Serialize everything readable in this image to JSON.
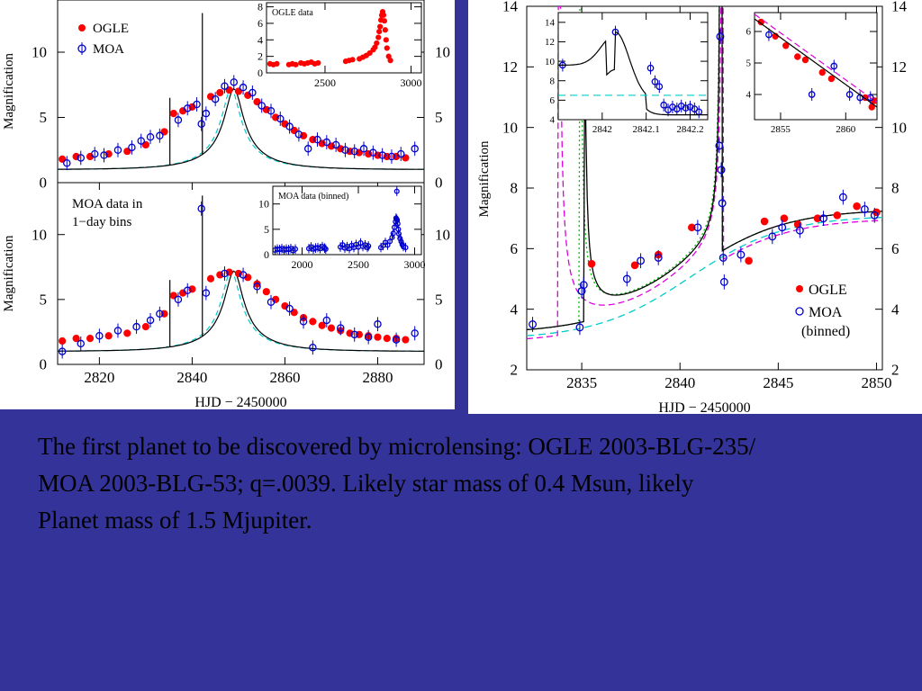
{
  "slide": {
    "background": "#333399",
    "caption_lines": [
      "The first planet to be discovered by microlensing: OGLE 2003-BLG-235/",
      "MOA 2003-BLG-53;  q=.0039.  Likely star mass of 0.4 Msun, likely",
      "Planet mass of 1.5 Mjupiter."
    ]
  },
  "colors": {
    "ogle": "#ff0000",
    "moa": "#0000cc",
    "model": "#000000",
    "alt_cyan": "#00cccc",
    "alt_magenta": "#dd00dd",
    "alt_green": "#00bb00"
  },
  "chart_data": [
    {
      "type": "scatter",
      "id": "left-top",
      "ylabel": "Magnification",
      "xlim": [
        2811,
        2890
      ],
      "ylim": [
        0,
        14
      ],
      "yticks": [
        0,
        5,
        10
      ],
      "legend": [
        {
          "name": "OGLE",
          "marker": "filled-circle"
        },
        {
          "name": "MOA",
          "marker": "open-circle"
        }
      ],
      "legend_position": "top-left",
      "model": {
        "t0": 2849,
        "u0": 0.14,
        "tE": 14,
        "spike_x": 2842.2,
        "spike_peak": 13,
        "pre_spike_x": 2835.2,
        "pre_spike_peak": 6.5
      },
      "series": [
        {
          "name": "OGLE",
          "x": [
            2812,
            2815,
            2818,
            2822,
            2826,
            2830,
            2834,
            2836,
            2838,
            2840,
            2844,
            2846,
            2848,
            2850,
            2852,
            2854,
            2856,
            2858,
            2860,
            2862,
            2864,
            2866,
            2868,
            2870,
            2872,
            2874,
            2876,
            2878,
            2880,
            2882,
            2884,
            2886
          ],
          "y": [
            1.8,
            2.0,
            2.0,
            2.2,
            2.4,
            2.9,
            3.9,
            5.3,
            5.5,
            5.8,
            6.6,
            6.9,
            7.1,
            7.0,
            6.7,
            6.2,
            5.6,
            5.0,
            4.5,
            4.0,
            3.6,
            3.3,
            3.0,
            2.8,
            2.6,
            2.4,
            2.3,
            2.2,
            2.1,
            2.0,
            2.0,
            1.9
          ]
        },
        {
          "name": "MOA",
          "x": [
            2813,
            2816,
            2819,
            2821,
            2824,
            2827,
            2829,
            2831,
            2833,
            2837,
            2839,
            2841,
            2842,
            2843,
            2845,
            2847,
            2849,
            2851,
            2853,
            2855,
            2857,
            2859,
            2861,
            2863,
            2865,
            2867,
            2869,
            2871,
            2873,
            2875,
            2877,
            2879,
            2881,
            2883,
            2885,
            2888
          ],
          "y": [
            1.5,
            1.9,
            2.2,
            2.1,
            2.5,
            2.7,
            3.2,
            3.5,
            3.6,
            4.8,
            5.7,
            6.0,
            4.5,
            5.3,
            6.4,
            7.4,
            7.7,
            7.3,
            6.9,
            5.9,
            5.5,
            4.9,
            4.3,
            3.7,
            2.6,
            3.3,
            3.1,
            2.9,
            2.5,
            2.4,
            2.6,
            2.3,
            2.1,
            2.0,
            2.2,
            2.6
          ]
        }
      ],
      "xticks": []
    },
    {
      "type": "scatter",
      "id": "left-top-inset",
      "title": "OGLE data",
      "xlim": [
        2160,
        3060
      ],
      "ylim": [
        0,
        8.5
      ],
      "yticks": [
        0,
        2,
        4,
        6,
        8
      ],
      "xticks": [
        2500,
        3000
      ],
      "series": [
        {
          "name": "OGLE",
          "x": [
            2180,
            2200,
            2220,
            2290,
            2310,
            2330,
            2360,
            2380,
            2400,
            2420,
            2440,
            2460,
            2620,
            2640,
            2660,
            2700,
            2720,
            2740,
            2760,
            2780,
            2790,
            2800,
            2810,
            2815,
            2820,
            2825,
            2830,
            2835,
            2840,
            2845,
            2850,
            2855,
            2860,
            2870,
            2880
          ],
          "y": [
            1.1,
            1.0,
            1.1,
            1.0,
            1.1,
            1.0,
            1.2,
            1.1,
            1.2,
            1.3,
            1.1,
            1.2,
            1.4,
            1.5,
            1.6,
            1.7,
            1.9,
            2.1,
            2.4,
            2.8,
            3.1,
            3.6,
            4.3,
            5.0,
            5.6,
            6.4,
            7.0,
            7.4,
            7.0,
            6.3,
            5.2,
            4.0,
            3.0,
            2.0,
            1.5
          ]
        }
      ]
    },
    {
      "type": "scatter",
      "id": "left-bottom",
      "ylabel": "Magnification",
      "xlabel": "HJD − 2450000",
      "annotation": [
        "MOA data in",
        "1−day bins"
      ],
      "xlim": [
        2811,
        2890
      ],
      "ylim": [
        0,
        14
      ],
      "yticks": [
        0,
        5,
        10
      ],
      "xticks": [
        2820,
        2840,
        2860,
        2880
      ],
      "model": {
        "t0": 2849,
        "u0": 0.14,
        "tE": 14,
        "spike_x": 2842.2,
        "spike_peak": 13,
        "pre_spike_x": 2835.2,
        "pre_spike_peak": 6.5
      },
      "series": [
        {
          "name": "OGLE",
          "x": [
            2812,
            2815,
            2818,
            2822,
            2826,
            2830,
            2834,
            2836,
            2838,
            2840,
            2844,
            2846,
            2848,
            2850,
            2852,
            2854,
            2856,
            2858,
            2860,
            2862,
            2864,
            2866,
            2868,
            2870,
            2872,
            2874,
            2876,
            2878,
            2880,
            2882,
            2884,
            2886
          ],
          "y": [
            1.8,
            2.0,
            2.0,
            2.2,
            2.4,
            2.9,
            3.9,
            5.3,
            5.5,
            5.8,
            6.6,
            6.9,
            7.1,
            7.0,
            6.7,
            6.2,
            5.6,
            5.0,
            4.5,
            4.0,
            3.6,
            3.3,
            3.0,
            2.8,
            2.6,
            2.4,
            2.3,
            2.2,
            2.1,
            2.0,
            2.0,
            1.9
          ]
        },
        {
          "name": "MOA",
          "x": [
            2812,
            2816,
            2820,
            2824,
            2828,
            2831,
            2833,
            2837,
            2839,
            2842,
            2843,
            2847,
            2851,
            2854,
            2857,
            2861,
            2864,
            2866,
            2869,
            2872,
            2875,
            2878,
            2880,
            2884,
            2888
          ],
          "y": [
            1.0,
            1.6,
            2.2,
            2.6,
            2.9,
            3.4,
            3.9,
            5.0,
            5.7,
            12.0,
            5.5,
            7.0,
            6.9,
            6.0,
            4.8,
            4.3,
            3.3,
            1.3,
            3.4,
            2.8,
            2.3,
            2.1,
            3.1,
            1.9,
            2.4
          ]
        }
      ]
    },
    {
      "type": "scatter",
      "id": "left-bottom-inset",
      "title": "MOA data (binned)",
      "xlim": [
        1740,
        3060
      ],
      "ylim": [
        0,
        13.5
      ],
      "yticks": [
        0,
        5,
        10
      ],
      "xticks": [
        2000,
        2500,
        3000
      ],
      "series": [
        {
          "name": "MOA",
          "x": [
            1760,
            1780,
            1800,
            1820,
            1840,
            1860,
            1880,
            1900,
            1920,
            1940,
            2060,
            2080,
            2100,
            2120,
            2140,
            2160,
            2180,
            2200,
            2210,
            2340,
            2360,
            2380,
            2400,
            2420,
            2440,
            2460,
            2480,
            2500,
            2520,
            2540,
            2560,
            2580,
            2590,
            2700,
            2720,
            2740,
            2760,
            2780,
            2800,
            2810,
            2820,
            2830,
            2835,
            2840,
            2842,
            2845,
            2850,
            2855,
            2860,
            2870,
            2880,
            2890,
            2900,
            2920
          ],
          "y": [
            0.9,
            1.1,
            1.0,
            1.2,
            0.9,
            1.1,
            1.0,
            1.2,
            0.8,
            1.1,
            1.2,
            1.5,
            1.1,
            1.3,
            1.4,
            1.2,
            1.6,
            1.3,
            1.1,
            1.5,
            1.9,
            1.3,
            1.6,
            1.2,
            1.8,
            1.4,
            2.0,
            1.5,
            2.3,
            1.6,
            1.9,
            1.4,
            1.7,
            1.4,
            1.8,
            2.4,
            1.9,
            2.6,
            3.4,
            4.2,
            5.4,
            6.5,
            7.2,
            7.0,
            12.5,
            6.8,
            6.1,
            5.0,
            4.1,
            3.2,
            2.6,
            2.0,
            1.6,
            1.4
          ]
        }
      ]
    },
    {
      "type": "scatter",
      "id": "right-main",
      "ylabel": "Magnification",
      "xlabel": "HJD − 2450000",
      "xlim": [
        2832.2,
        2850.3
      ],
      "ylim": [
        2,
        14
      ],
      "yticks": [
        2,
        4,
        6,
        8,
        10,
        12,
        14
      ],
      "xticks": [
        2835,
        2840,
        2845,
        2850
      ],
      "legend": [
        {
          "name": "OGLE",
          "marker": "filled-circle"
        },
        {
          "name": "MOA",
          "marker": "open-circle"
        },
        {
          "name": "(binned)",
          "marker": "none"
        }
      ],
      "legend_position": "bottom-right",
      "series": [
        {
          "name": "OGLE",
          "x": [
            2835.5,
            2837.7,
            2838.9,
            2840.6,
            2843.5,
            2844.3,
            2845.3,
            2846.0,
            2847.0,
            2848.0,
            2849.0,
            2850.0
          ],
          "y": [
            5.5,
            5.45,
            5.8,
            6.7,
            5.6,
            6.9,
            7.0,
            6.8,
            7.0,
            7.1,
            7.4,
            7.2
          ]
        },
        {
          "name": "MOA (binned)",
          "x": [
            2832.5,
            2834.9,
            2835.0,
            2835.1,
            2837.3,
            2838.0,
            2838.9,
            2840.9,
            2842.0,
            2842.05,
            2842.1,
            2842.15,
            2842.2,
            2842.25,
            2843.1,
            2844.7,
            2845.2,
            2846.1,
            2847.3,
            2848.3,
            2849.4,
            2849.9
          ],
          "y": [
            3.5,
            3.4,
            4.6,
            4.8,
            5.0,
            5.6,
            5.7,
            6.7,
            9.4,
            13.0,
            8.6,
            7.5,
            5.7,
            4.9,
            5.8,
            6.4,
            6.7,
            6.6,
            7.0,
            7.7,
            7.3,
            7.1
          ]
        }
      ]
    },
    {
      "type": "scatter",
      "id": "right-inset-a",
      "xlim": [
        2841.9,
        2842.24
      ],
      "ylim": [
        4,
        15
      ],
      "yticks": [
        4,
        6,
        8,
        10,
        12,
        14
      ],
      "xticks": [
        2842,
        2842.1,
        2842.2
      ],
      "series": [
        {
          "name": "MOA",
          "x": [
            2841.91,
            2842.03,
            2842.11,
            2842.12,
            2842.13,
            2842.14,
            2842.15,
            2842.16,
            2842.17,
            2842.18,
            2842.19,
            2842.2,
            2842.21,
            2842.22
          ],
          "y": [
            9.6,
            13.0,
            9.3,
            7.9,
            7.4,
            5.5,
            5.0,
            5.3,
            5.1,
            5.4,
            5.2,
            5.3,
            5.1,
            4.8
          ]
        }
      ]
    },
    {
      "type": "scatter",
      "id": "right-inset-b",
      "xlim": [
        2853,
        2862.4
      ],
      "ylim": [
        3.2,
        6.6
      ],
      "yticks": [
        4,
        5,
        6
      ],
      "xticks": [
        2855,
        2860
      ],
      "series": [
        {
          "name": "OGLE",
          "x": [
            2853.5,
            2854.6,
            2855.4,
            2856.3,
            2856.9,
            2858.2,
            2858.9,
            2861.5,
            2862.0,
            2862.2
          ],
          "y": [
            6.3,
            5.85,
            5.55,
            5.2,
            5.1,
            4.7,
            4.5,
            3.9,
            3.6,
            3.8
          ]
        },
        {
          "name": "MOA",
          "x": [
            2854.1,
            2857.4,
            2859.1,
            2860.3,
            2861.1,
            2861.9
          ],
          "y": [
            5.9,
            4.0,
            4.9,
            4.0,
            3.9,
            3.9
          ]
        }
      ]
    }
  ]
}
